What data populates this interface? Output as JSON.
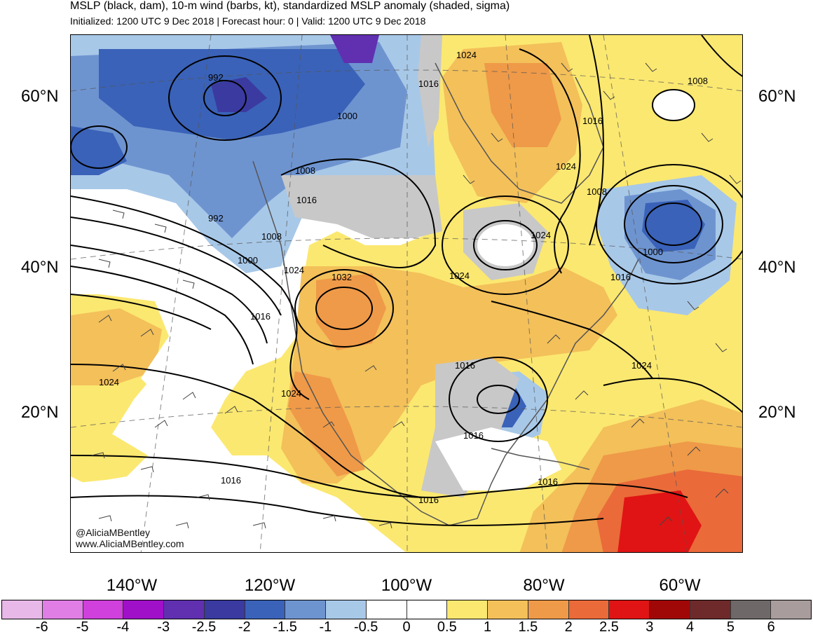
{
  "header": {
    "title": "MSLP (black, dam), 10-m wind (barbs, kt), standardized MSLP anomaly (shaded, sigma)",
    "subtitle": "Initialized: 1200 UTC 9 Dec 2018 | Forecast hour: 0 | Valid: 1200 UTC 9 Dec 2018"
  },
  "lat_labels": [
    "60°N",
    "40°N",
    "20°N"
  ],
  "lon_labels": [
    "140°W",
    "120°W",
    "100°W",
    "80°W",
    "60°W"
  ],
  "credit": {
    "handle": "@AliciaMBentley",
    "website": "www.AliciaMBentley.com"
  },
  "isobar_labels": [
    "992",
    "1000",
    "1008",
    "1016",
    "1024",
    "1016",
    "992",
    "1008",
    "1000",
    "1016",
    "1032",
    "1024",
    "1024",
    "1008",
    "1024",
    "1008",
    "1016",
    "1000",
    "1016",
    "1024",
    "1024",
    "1016",
    "1016",
    "1016",
    "1016",
    "1024",
    "1024",
    "1016"
  ],
  "colorbar": {
    "levels": [
      "-6",
      "-5",
      "-4",
      "-3",
      "-2.5",
      "-2",
      "-1.5",
      "-1",
      "-0.5",
      "0",
      "0.5",
      "1",
      "1.5",
      "2",
      "2.5",
      "3",
      "4",
      "5",
      "6"
    ],
    "colors": [
      "#e8b8e8",
      "#e07ee6",
      "#d040dc",
      "#a010c8",
      "#6030b0",
      "#3a3aa0",
      "#3a62b8",
      "#6e94d0",
      "#a8c8e8",
      "#ffffff",
      "#ffffff",
      "#fbe870",
      "#f3c05a",
      "#ef9a48",
      "#ea6a3a",
      "#e01414",
      "#a00808",
      "#6e2a2a",
      "#6e6868",
      "#a89c9c"
    ]
  }
}
